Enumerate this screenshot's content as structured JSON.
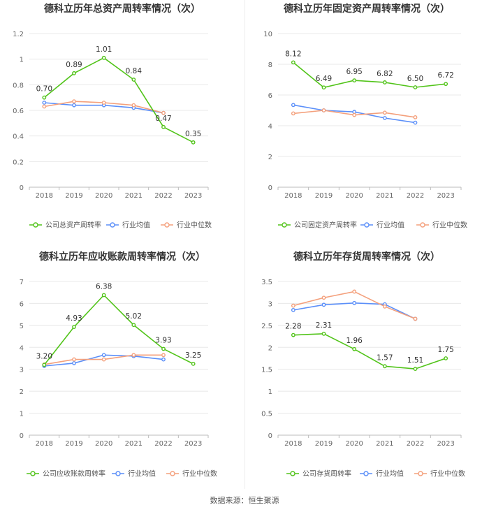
{
  "colors": {
    "company": "#52c41a",
    "avg": "#5b8ff9",
    "median": "#f4a07c",
    "grid": "#e8e8e8",
    "axis_text": "#666666",
    "label_text": "#333333"
  },
  "source": "数据来源：恒生聚源",
  "chart_data": [
    {
      "type": "line",
      "title": "德科立历年总资产周转率情况（次）",
      "categories": [
        "2018",
        "2019",
        "2020",
        "2021",
        "2022",
        "2023"
      ],
      "ylim": [
        0,
        1.2
      ],
      "yticks": [
        0,
        0.2,
        0.4,
        0.6,
        0.8,
        1,
        1.2
      ],
      "ytick_labels": [
        "0",
        "0.2",
        "0.4",
        "0.6",
        "0.8",
        "1",
        "1.2"
      ],
      "series": [
        {
          "name": "公司总资产周转率",
          "role": "company",
          "values": [
            0.7,
            0.89,
            1.01,
            0.84,
            0.47,
            0.35
          ],
          "labels": [
            "0.70",
            "0.89",
            "1.01",
            "0.84",
            "0.47",
            "0.35"
          ]
        },
        {
          "name": "行业均值",
          "role": "avg",
          "values": [
            0.66,
            0.64,
            0.64,
            0.62,
            0.58,
            null
          ]
        },
        {
          "name": "行业中位数",
          "role": "median",
          "values": [
            0.63,
            0.67,
            0.66,
            0.64,
            0.58,
            null
          ]
        }
      ]
    },
    {
      "type": "line",
      "title": "德科立历年固定资产周转率情况（次）",
      "categories": [
        "2018",
        "2019",
        "2020",
        "2021",
        "2022",
        "2023"
      ],
      "ylim": [
        0,
        10
      ],
      "yticks": [
        0,
        2,
        4,
        6,
        8,
        10
      ],
      "ytick_labels": [
        "0",
        "2",
        "4",
        "6",
        "8",
        "10"
      ],
      "series": [
        {
          "name": "公司固定资产周转率",
          "role": "company",
          "values": [
            8.12,
            6.49,
            6.95,
            6.82,
            6.5,
            6.72
          ],
          "labels": [
            "8.12",
            "6.49",
            "6.95",
            "6.82",
            "6.50",
            "6.72"
          ]
        },
        {
          "name": "行业均值",
          "role": "avg",
          "values": [
            5.35,
            5.0,
            4.9,
            4.5,
            4.2,
            null
          ]
        },
        {
          "name": "行业中位数",
          "role": "median",
          "values": [
            4.8,
            5.0,
            4.7,
            4.85,
            4.55,
            null
          ]
        }
      ]
    },
    {
      "type": "line",
      "title": "德科立历年应收账款周转率情况（次）",
      "categories": [
        "2018",
        "2019",
        "2020",
        "2021",
        "2022",
        "2023"
      ],
      "ylim": [
        0,
        7
      ],
      "yticks": [
        0,
        1,
        2,
        3,
        4,
        5,
        6,
        7
      ],
      "ytick_labels": [
        "0",
        "1",
        "2",
        "3",
        "4",
        "5",
        "6",
        "7"
      ],
      "series": [
        {
          "name": "公司应收账款周转率",
          "role": "company",
          "values": [
            3.2,
            4.93,
            6.38,
            5.02,
            3.93,
            3.25
          ],
          "labels": [
            "3.20",
            "4.93",
            "6.38",
            "5.02",
            "3.93",
            "3.25"
          ]
        },
        {
          "name": "行业均值",
          "role": "avg",
          "values": [
            3.15,
            3.28,
            3.65,
            3.6,
            3.45,
            null
          ]
        },
        {
          "name": "行业中位数",
          "role": "median",
          "values": [
            3.22,
            3.45,
            3.45,
            3.65,
            3.65,
            null
          ]
        }
      ]
    },
    {
      "type": "line",
      "title": "德科立历年存货周转率情况（次）",
      "categories": [
        "2018",
        "2019",
        "2020",
        "2021",
        "2022",
        "2023"
      ],
      "ylim": [
        0,
        3.5
      ],
      "yticks": [
        0,
        0.5,
        1,
        1.5,
        2,
        2.5,
        3,
        3.5
      ],
      "ytick_labels": [
        "0",
        "0.5",
        "1",
        "1.5",
        "2",
        "2.5",
        "3",
        "3.5"
      ],
      "series": [
        {
          "name": "公司存货周转率",
          "role": "company",
          "values": [
            2.28,
            2.31,
            1.96,
            1.57,
            1.51,
            1.75
          ],
          "labels": [
            "2.28",
            "2.31",
            "1.96",
            "1.57",
            "1.51",
            "1.75"
          ]
        },
        {
          "name": "行业均值",
          "role": "avg",
          "values": [
            2.85,
            2.97,
            3.01,
            2.98,
            2.65,
            null
          ]
        },
        {
          "name": "行业中位数",
          "role": "median",
          "values": [
            2.95,
            3.13,
            3.27,
            2.93,
            2.65,
            null
          ]
        }
      ]
    }
  ]
}
